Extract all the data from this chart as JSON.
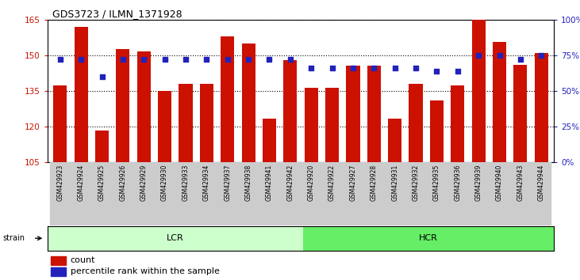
{
  "title": "GDS3723 / ILMN_1371928",
  "samples": [
    "GSM429923",
    "GSM429924",
    "GSM429925",
    "GSM429926",
    "GSM429929",
    "GSM429930",
    "GSM429933",
    "GSM429934",
    "GSM429937",
    "GSM429938",
    "GSM429941",
    "GSM429942",
    "GSM429920",
    "GSM429922",
    "GSM429927",
    "GSM429928",
    "GSM429931",
    "GSM429932",
    "GSM429935",
    "GSM429936",
    "GSM429939",
    "GSM429940",
    "GSM429943",
    "GSM429944"
  ],
  "counts": [
    137.5,
    162.0,
    118.5,
    152.5,
    151.5,
    135.0,
    138.0,
    138.0,
    158.0,
    155.0,
    123.5,
    148.0,
    136.5,
    136.5,
    145.5,
    145.5,
    123.5,
    138.0,
    131.0,
    137.5,
    165.0,
    155.5,
    146.0,
    151.0
  ],
  "percentile_ranks": [
    72,
    72,
    60,
    72,
    72,
    72,
    72,
    72,
    72,
    72,
    72,
    72,
    66,
    66,
    66,
    66,
    66,
    66,
    64,
    64,
    75,
    75,
    72,
    75
  ],
  "lcr_count": 12,
  "hcr_count": 12,
  "lcr_label": "LCR",
  "hcr_label": "HCR",
  "strain_label": "strain",
  "ymin": 105,
  "ymax": 165,
  "yticks_left": [
    105,
    120,
    135,
    150,
    165
  ],
  "yticks_right": [
    0,
    25,
    50,
    75,
    100
  ],
  "bar_color": "#cc1100",
  "dot_color": "#2222bb",
  "lcr_color": "#ccffcc",
  "hcr_color": "#66ee66",
  "tick_bg_color": "#cccccc",
  "legend_count_label": "count",
  "legend_pct_label": "percentile rank within the sample"
}
